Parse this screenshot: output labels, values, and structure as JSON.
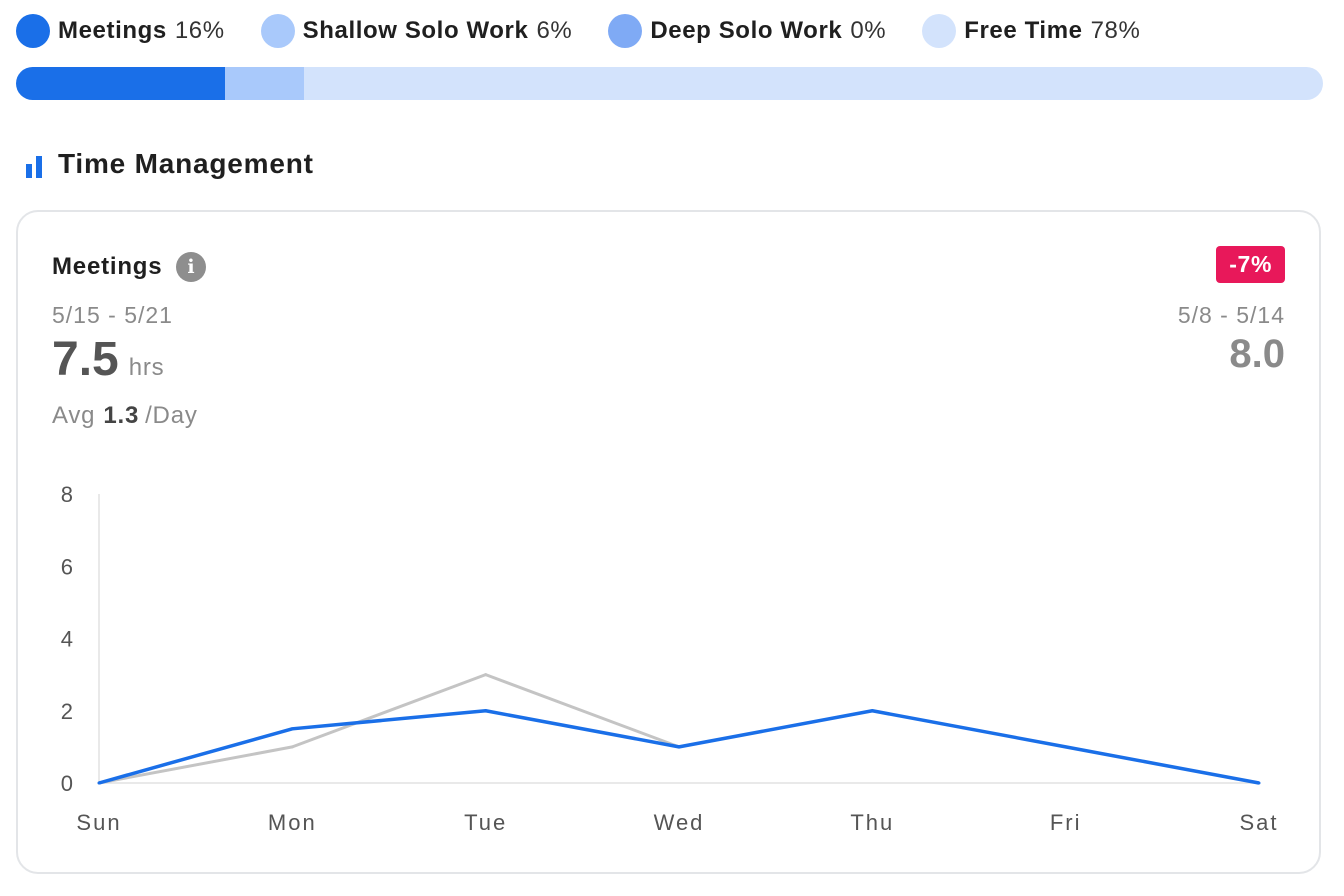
{
  "legend": [
    {
      "name": "Meetings",
      "pct": "16%",
      "color": "#1a6fe8"
    },
    {
      "name": "Shallow Solo Work",
      "pct": "6%",
      "color": "#a9c9fb"
    },
    {
      "name": "Deep Solo Work",
      "pct": "0%",
      "color": "#7faaf5"
    },
    {
      "name": "Free Time",
      "pct": "78%",
      "color": "#d3e3fc"
    }
  ],
  "progress": [
    {
      "name": "Meetings",
      "fraction": 0.16,
      "color": "#1a6fe8"
    },
    {
      "name": "Shallow Solo Work",
      "fraction": 0.06,
      "color": "#a9c9fb"
    },
    {
      "name": "Deep Solo Work",
      "fraction": 0.0,
      "color": "#7faaf5"
    },
    {
      "name": "Free Time",
      "fraction": 0.78,
      "color": "#d3e3fc"
    }
  ],
  "section": {
    "title": "Time Management",
    "icon": "bar-chart-icon"
  },
  "card": {
    "metric": "Meetings",
    "info_icon": "info-icon",
    "change": "-7%",
    "change_color": "#e8185a",
    "current_period": "5/15 - 5/21",
    "current_value": "7.5",
    "unit": "hrs",
    "prev_period": "5/8 - 5/14",
    "prev_value": "8.0",
    "avg_label": "Avg",
    "avg_value": "1.3",
    "avg_unit": "/Day"
  },
  "chart_data": {
    "type": "line",
    "categories": [
      "Sun",
      "Mon",
      "Tue",
      "Wed",
      "Thu",
      "Fri",
      "Sat"
    ],
    "series": [
      {
        "values": [
          0,
          1.5,
          2,
          1,
          2,
          1,
          0
        ],
        "color": "#1a6fe8"
      },
      {
        "values": [
          0,
          1,
          3,
          1,
          null,
          null,
          null
        ],
        "color": "#c4c4c4"
      }
    ],
    "yticks": [
      0,
      2,
      4,
      6,
      8
    ],
    "ylim": [
      0,
      8
    ],
    "grid": false
  }
}
